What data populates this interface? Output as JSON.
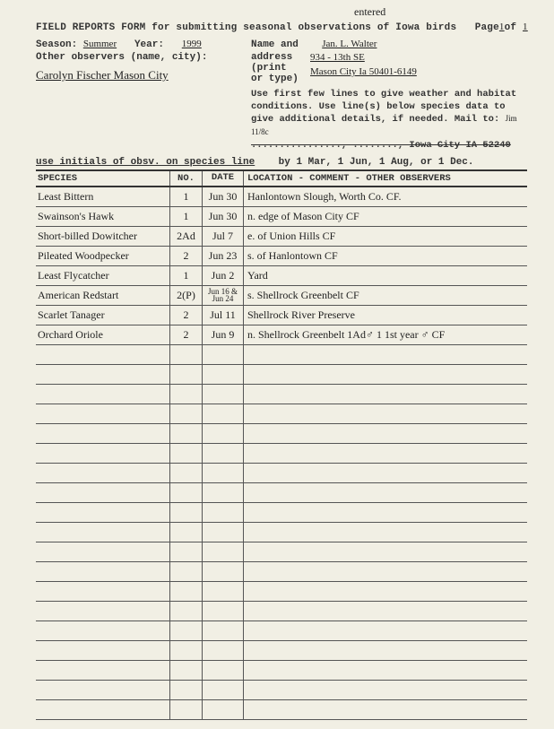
{
  "annotation_top": "entered",
  "header": {
    "title_prefix": "FIELD REPORTS FORM for submitting seasonal observations of Iowa birds",
    "page_label": "Page",
    "page_cur": "1",
    "page_of": "of",
    "page_tot": "1"
  },
  "form": {
    "season_label": "Season:",
    "season": "Summer",
    "year_label": "Year:",
    "year": "1999",
    "name_label": "Name and",
    "address_label1": "address",
    "address_label2": "(print",
    "address_label3": "or type)",
    "name": "Jan. L. Walter",
    "address1": "934 - 13th SE",
    "address2": "Mason City Ia 50401-6149",
    "other_obs_label": "Other observers (name, city):",
    "other_obs": "Carolyn Fischer Mason City"
  },
  "instructions": {
    "l1": "Use first few lines to give weather and habitat",
    "l2": "conditions. Use line(s) below species data to",
    "l3": "give additional details, if needed. Mail to:",
    "l3_hand": "Jim 11/8c",
    "l4_strike": "................, ........, Iowa City IA 52240"
  },
  "obsv_line": "use initials of obsv. on species line",
  "by_line": "by 1 Mar, 1 Jun, 1 Aug, or 1 Dec.",
  "table": {
    "head": {
      "species": "SPECIES",
      "no": "NO.",
      "date": "DATE",
      "loc": "LOCATION - COMMENT - OTHER OBSERVERS"
    },
    "rows": [
      {
        "species": "Least Bittern",
        "no": "1",
        "date": "Jun 30",
        "loc": "Hanlontown Slough, Worth Co.  CF."
      },
      {
        "species": "Swainson's Hawk",
        "no": "1",
        "date": "Jun 30",
        "loc": "n. edge of Mason City  CF"
      },
      {
        "species": "Short-billed Dowitcher",
        "no": "2Ad",
        "date": "Jul 7",
        "loc": "e. of Union Hills        CF"
      },
      {
        "species": "Pileated Woodpecker",
        "no": "2",
        "date": "Jun 23",
        "loc": "s. of Hanlontown       CF"
      },
      {
        "species": "Least Flycatcher",
        "no": "1",
        "date": "Jun 2",
        "loc": "Yard"
      },
      {
        "species": "American Redstart",
        "no": "2(P)",
        "date": "Jun 16 &",
        "date2": "Jun 24",
        "loc": "s. Shellrock Greenbelt CF"
      },
      {
        "species": "Scarlet Tanager",
        "no": "2",
        "date": "Jul 11",
        "loc": "Shellrock River Preserve"
      },
      {
        "species": "Orchard Oriole",
        "no": "2",
        "date": "Jun 9",
        "loc": "n. Shellrock Greenbelt 1Ad♂ 1 1st year ♂ CF"
      }
    ],
    "empty_rows": 19
  }
}
